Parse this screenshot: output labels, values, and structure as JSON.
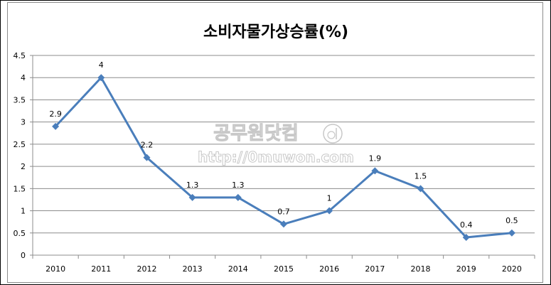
{
  "chart_data": {
    "type": "line",
    "title": "소비자물가상승률(%)",
    "categories": [
      "2010",
      "2011",
      "2012",
      "2013",
      "2014",
      "2015",
      "2016",
      "2017",
      "2018",
      "2019",
      "2020"
    ],
    "values": [
      2.9,
      4,
      2.2,
      1.3,
      1.3,
      0.7,
      1,
      1.9,
      1.5,
      0.4,
      0.5
    ],
    "data_labels": [
      "2.9",
      "4",
      "2.2",
      "1.3",
      "1.3",
      "0.7",
      "1",
      "1.9",
      "1.5",
      "0.4",
      "0.5"
    ],
    "y_ticks": [
      "0",
      "0.5",
      "1",
      "1.5",
      "2",
      "2.5",
      "3",
      "3.5",
      "4",
      "4.5"
    ],
    "ylim": [
      0,
      4.5
    ],
    "grid": true,
    "legend": "none",
    "colors": {
      "line": "#4a7ebb",
      "grid": "#8c8c8c"
    }
  },
  "watermark": {
    "line1": "공무원닷컴",
    "line2": "http://0muwon.com"
  }
}
